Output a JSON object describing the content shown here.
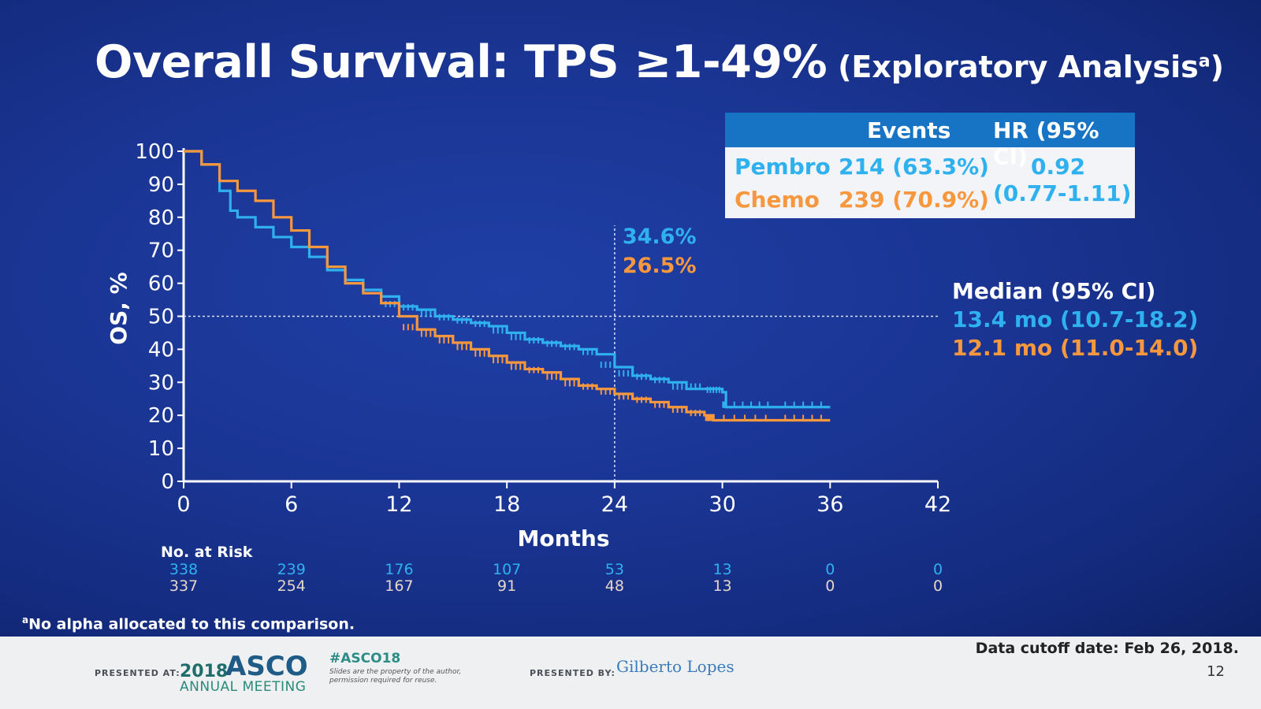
{
  "title": {
    "main": "Overall Survival: TPS ≥1-49%",
    "sub_prefix": "(Exploratory Analysis",
    "sub_sup": "a",
    "sub_suffix": ")"
  },
  "colors": {
    "pembro": "#2fb1f0",
    "chemo": "#f7973e",
    "axis": "#ffffff",
    "table_header": "#1773c4"
  },
  "events_table": {
    "headers": {
      "events": "Events",
      "hr": "HR (95% CI)"
    },
    "rows": [
      {
        "arm": "Pembro",
        "events": "214 (63.3%)"
      },
      {
        "arm": "Chemo",
        "events": "239 (70.9%)"
      }
    ],
    "hr_value": "0.92",
    "hr_ci": "(0.77-1.11)"
  },
  "median": {
    "header": "Median (95% CI)",
    "pembro": "13.4 mo (10.7-18.2)",
    "chemo": "12.1 mo (11.0-14.0)"
  },
  "chart_data": {
    "type": "line",
    "title": "Overall Survival: TPS ≥1-49% (Exploratory Analysis)",
    "xlabel": "Months",
    "ylabel": "OS, %",
    "xlim": [
      0,
      42
    ],
    "ylim": [
      0,
      100
    ],
    "xticks": [
      "0",
      "6",
      "12",
      "18",
      "24",
      "30",
      "36",
      "42"
    ],
    "yticks": [
      "0",
      "10",
      "20",
      "30",
      "40",
      "50",
      "60",
      "70",
      "80",
      "90",
      "100"
    ],
    "reference_lines": {
      "y": 50,
      "x": 24
    },
    "annotations_at_24mo": {
      "pembro": "34.6%",
      "chemo": "26.5%"
    },
    "series": [
      {
        "name": "Pembro",
        "x": [
          0,
          1,
          2,
          2.6,
          3,
          4,
          5,
          6,
          7,
          8,
          9,
          10,
          11,
          12,
          13,
          14,
          15,
          16,
          17,
          18,
          19,
          20,
          21,
          22,
          23,
          24,
          25,
          26,
          27,
          28,
          29,
          30,
          30.2,
          33,
          36
        ],
        "y": [
          100,
          96,
          88,
          82,
          80,
          77,
          74,
          71,
          68,
          64,
          61,
          58,
          56,
          53,
          52,
          50,
          49,
          48,
          47,
          45,
          43,
          42,
          41,
          40,
          38.5,
          34.6,
          32,
          31,
          30,
          28,
          28,
          27,
          22.5,
          22.5,
          22.5
        ]
      },
      {
        "name": "Chemo",
        "x": [
          0,
          1,
          2,
          3,
          4,
          5,
          6,
          7,
          8,
          9,
          10,
          11,
          12,
          13,
          14,
          15,
          16,
          17,
          18,
          19,
          20,
          21,
          22,
          23,
          24,
          25,
          26,
          27,
          28,
          29,
          29.5,
          33,
          36
        ],
        "y": [
          100,
          96,
          91,
          88,
          85,
          80,
          76,
          71,
          65,
          60,
          57,
          54,
          50,
          46,
          44,
          42,
          40,
          38,
          36,
          34,
          33,
          31,
          29,
          28,
          26.5,
          25,
          24,
          22.5,
          21,
          20,
          18.5,
          18.5,
          18.5
        ]
      }
    ]
  },
  "risk_table": {
    "label": "No. at Risk",
    "pembro": [
      "338",
      "239",
      "176",
      "107",
      "53",
      "13",
      "0",
      "0"
    ],
    "chemo": [
      "337",
      "254",
      "167",
      "91",
      "48",
      "13",
      "0",
      "0"
    ]
  },
  "footnote": {
    "sup": "a",
    "text": "No alpha allocated to this comparison."
  },
  "footer": {
    "presented_at": "PRESENTED AT:",
    "asco_year": "2018",
    "asco_name": "ASCO",
    "asco_meeting": "ANNUAL MEETING",
    "hashtag": "#ASCO18",
    "disclaimer": "Slides are the property of the author, permission required for reuse.",
    "presented_by": "PRESENTED BY:",
    "presenter": "Gilberto Lopes",
    "cutoff": "Data cutoff date: Feb 26, 2018.",
    "slide_number": "12"
  }
}
